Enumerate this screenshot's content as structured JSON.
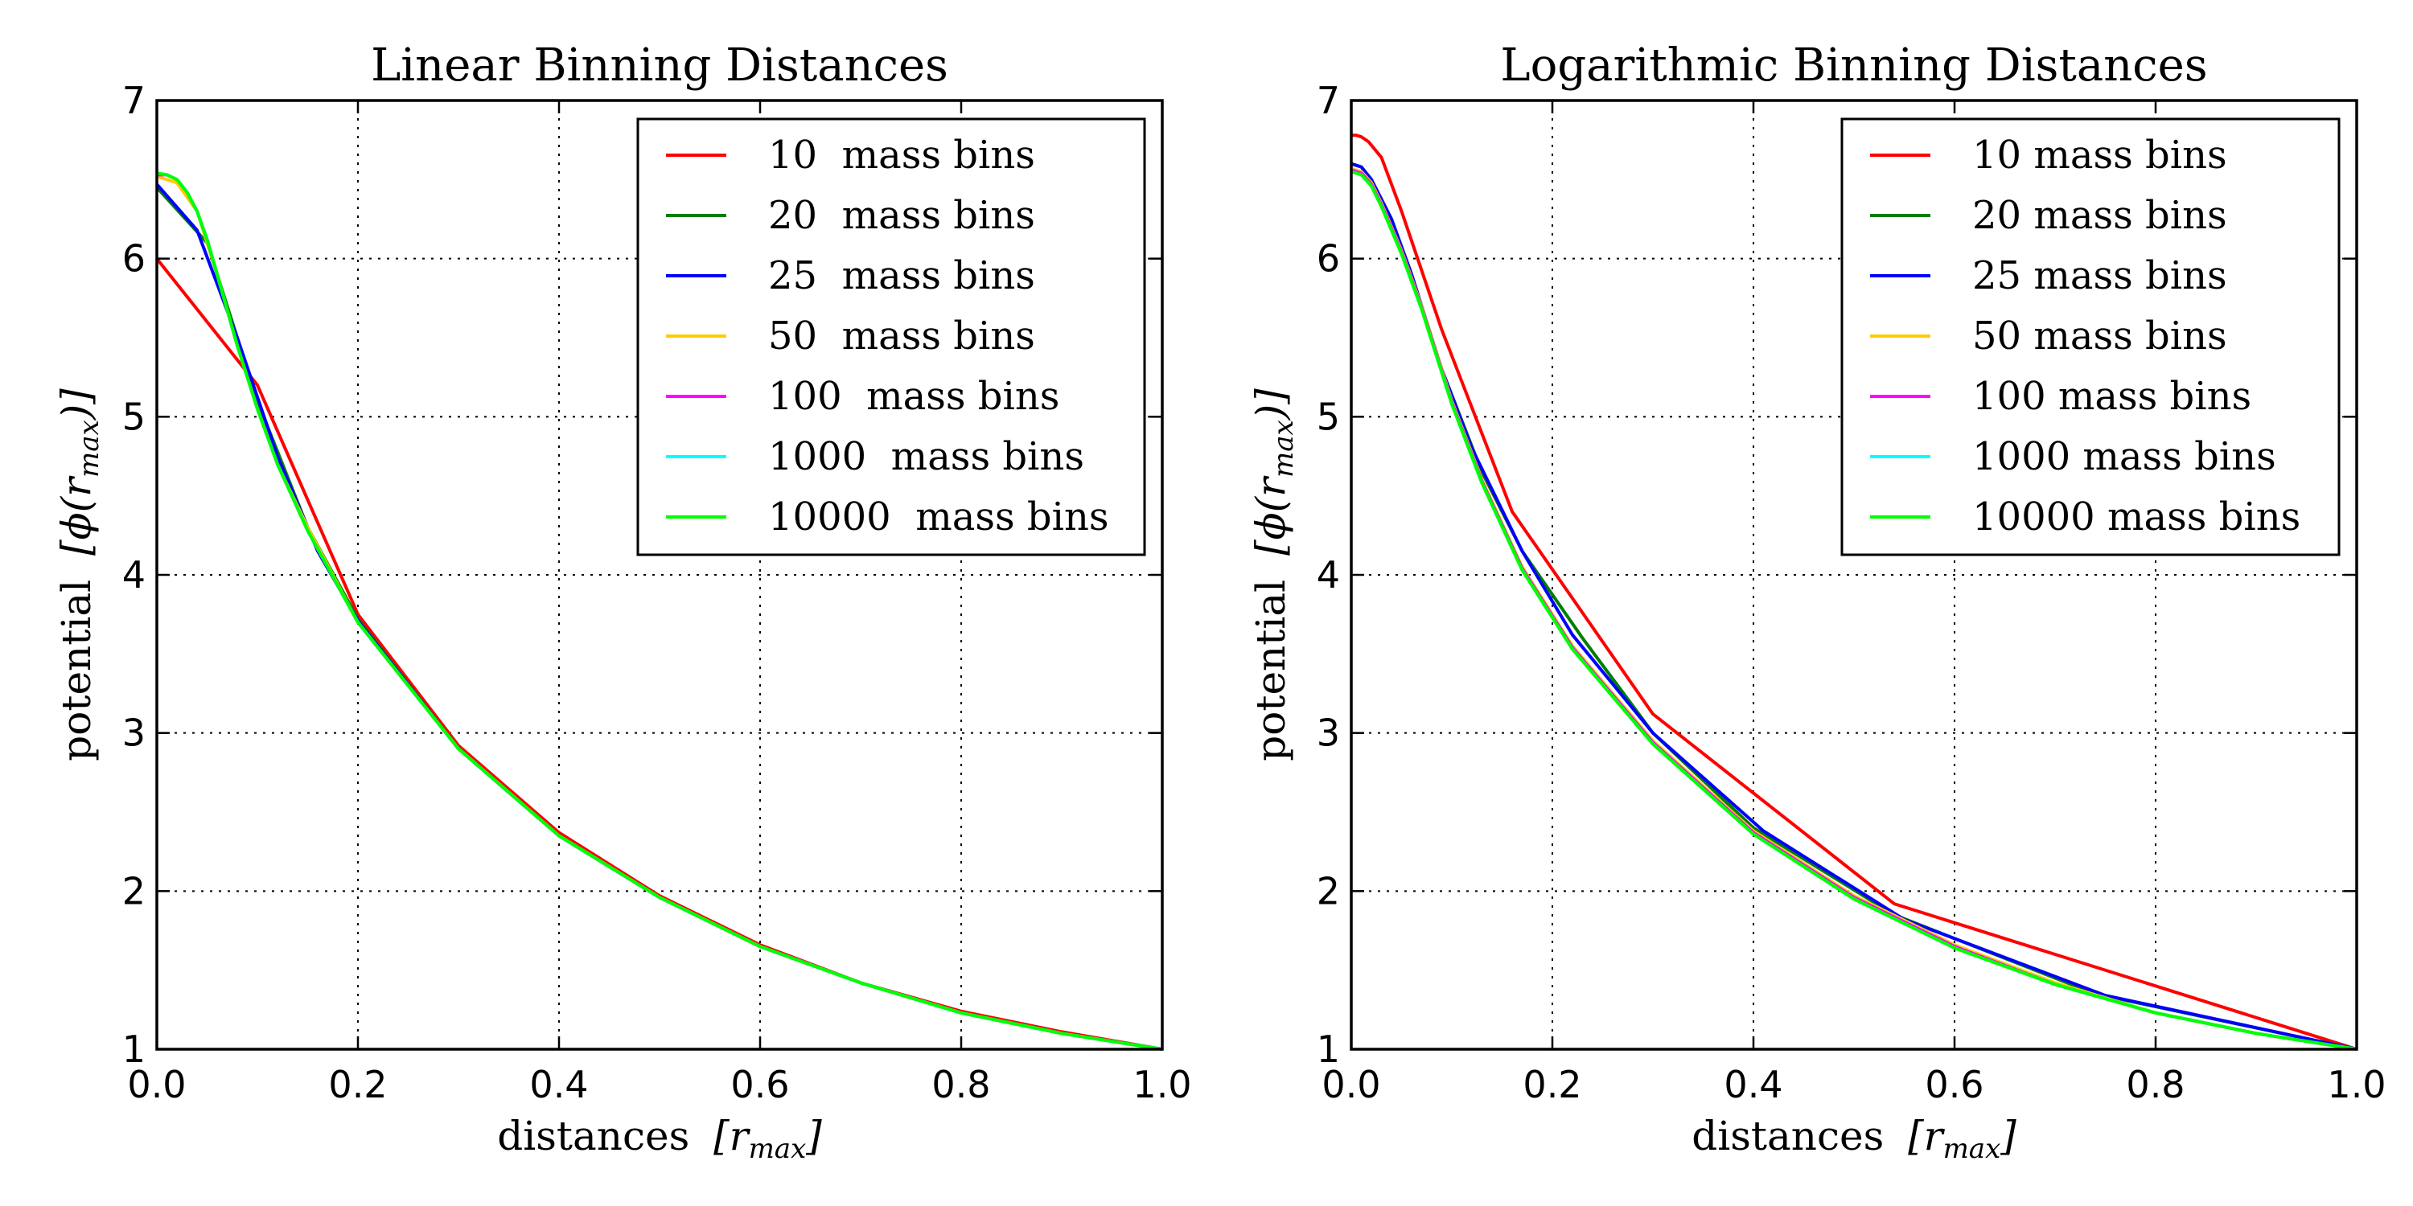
{
  "chart_data": [
    {
      "type": "line",
      "title": "Linear Binning Distances",
      "xlabel": "distances",
      "xlabel_math": "[r",
      "xlabel_sub": "max",
      "xlabel_end": "]",
      "ylabel": "potential",
      "ylabel_math": "[ϕ(r",
      "ylabel_sub": "max",
      "ylabel_end": ")]",
      "xlim": [
        0.0,
        1.0
      ],
      "ylim": [
        1,
        7
      ],
      "xticks": [
        "0.0",
        "0.2",
        "0.4",
        "0.6",
        "0.8",
        "1.0"
      ],
      "yticks": [
        "1",
        "2",
        "3",
        "4",
        "5",
        "6",
        "7"
      ],
      "grid": true,
      "legend_position": "top-right",
      "series": [
        {
          "name": "10  mass bins",
          "color": "#ff0000",
          "x": [
            0.0,
            0.1,
            0.2,
            0.3,
            0.4,
            0.5,
            0.6,
            0.7,
            0.8,
            0.9,
            1.0
          ],
          "y": [
            6.0,
            5.2,
            3.75,
            2.92,
            2.37,
            1.97,
            1.66,
            1.42,
            1.24,
            1.11,
            1.0
          ]
        },
        {
          "name": "20  mass bins",
          "color": "#007f00",
          "x": [
            0.0,
            0.05,
            0.1,
            0.15,
            0.2,
            0.3,
            0.4,
            0.5,
            0.6,
            0.7,
            0.8,
            0.9,
            1.0
          ],
          "y": [
            6.45,
            6.1,
            5.1,
            4.3,
            3.72,
            2.9,
            2.35,
            1.96,
            1.65,
            1.42,
            1.23,
            1.1,
            1.0
          ]
        },
        {
          "name": "25  mass bins",
          "color": "#0000ff",
          "x": [
            0.0,
            0.04,
            0.08,
            0.12,
            0.16,
            0.2,
            0.3,
            0.4,
            0.5,
            0.6,
            0.7,
            0.8,
            0.9,
            1.0
          ],
          "y": [
            6.47,
            6.18,
            5.5,
            4.75,
            4.15,
            3.71,
            2.9,
            2.35,
            1.96,
            1.65,
            1.42,
            1.23,
            1.1,
            1.0
          ]
        },
        {
          "name": "50  mass bins",
          "color": "#ffcc00",
          "x": [
            0.0,
            0.02,
            0.04,
            0.06,
            0.08,
            0.1,
            0.12,
            0.15,
            0.2,
            0.3,
            0.4,
            0.5,
            0.6,
            0.7,
            0.8,
            0.9,
            1.0
          ],
          "y": [
            6.52,
            6.48,
            6.3,
            5.9,
            5.45,
            5.05,
            4.7,
            4.3,
            3.7,
            2.9,
            2.35,
            1.96,
            1.65,
            1.42,
            1.23,
            1.1,
            1.0
          ]
        },
        {
          "name": "100  mass bins",
          "color": "#ff00ff",
          "x": [
            0.0,
            0.01,
            0.02,
            0.03,
            0.04,
            0.05,
            0.06,
            0.08,
            0.1,
            0.12,
            0.15,
            0.2,
            0.3,
            0.4,
            0.5,
            0.6,
            0.7,
            0.8,
            0.9,
            1.0
          ],
          "y": [
            6.53,
            6.53,
            6.5,
            6.42,
            6.3,
            6.12,
            5.9,
            5.45,
            5.05,
            4.7,
            4.28,
            3.7,
            2.9,
            2.35,
            1.96,
            1.65,
            1.42,
            1.23,
            1.1,
            1.0
          ]
        },
        {
          "name": "1000  mass bins",
          "color": "#00ffff",
          "x": [
            0.0,
            0.01,
            0.02,
            0.03,
            0.04,
            0.05,
            0.06,
            0.08,
            0.1,
            0.12,
            0.15,
            0.2,
            0.3,
            0.4,
            0.5,
            0.6,
            0.7,
            0.8,
            0.9,
            1.0
          ],
          "y": [
            6.54,
            6.53,
            6.5,
            6.42,
            6.3,
            6.12,
            5.9,
            5.45,
            5.05,
            4.7,
            4.28,
            3.7,
            2.9,
            2.35,
            1.96,
            1.65,
            1.42,
            1.23,
            1.1,
            1.0
          ]
        },
        {
          "name": "10000  mass bins",
          "color": "#00ff00",
          "x": [
            0.0,
            0.01,
            0.02,
            0.03,
            0.04,
            0.05,
            0.06,
            0.08,
            0.1,
            0.12,
            0.15,
            0.2,
            0.3,
            0.4,
            0.5,
            0.6,
            0.7,
            0.8,
            0.9,
            1.0
          ],
          "y": [
            6.54,
            6.53,
            6.5,
            6.42,
            6.3,
            6.12,
            5.9,
            5.45,
            5.05,
            4.7,
            4.28,
            3.7,
            2.9,
            2.35,
            1.96,
            1.65,
            1.42,
            1.23,
            1.1,
            1.0
          ]
        }
      ]
    },
    {
      "type": "line",
      "title": "Logarithmic Binning Distances",
      "xlabel": "distances",
      "xlabel_math": "[r",
      "xlabel_sub": "max",
      "xlabel_end": "]",
      "ylabel": "potential",
      "ylabel_math": "[ϕ(r",
      "ylabel_sub": "max",
      "ylabel_end": ")]",
      "xlim": [
        0.0,
        1.0
      ],
      "ylim": [
        1,
        7
      ],
      "xticks": [
        "0.0",
        "0.2",
        "0.4",
        "0.6",
        "0.8",
        "1.0"
      ],
      "yticks": [
        "1",
        "2",
        "3",
        "4",
        "5",
        "6",
        "7"
      ],
      "grid": true,
      "legend_position": "top-right",
      "series": [
        {
          "name": "10 mass bins",
          "color": "#ff0000",
          "x": [
            0.0,
            0.005,
            0.01,
            0.017,
            0.03,
            0.05,
            0.09,
            0.16,
            0.3,
            0.54,
            1.0
          ],
          "y": [
            6.78,
            6.78,
            6.77,
            6.74,
            6.64,
            6.3,
            5.55,
            4.4,
            3.12,
            1.92,
            1.0
          ]
        },
        {
          "name": "20 mass bins",
          "color": "#007f00",
          "x": [
            0.0,
            0.01,
            0.02,
            0.04,
            0.06,
            0.09,
            0.13,
            0.17,
            0.23,
            0.3,
            0.4,
            0.54,
            0.74,
            1.0
          ],
          "y": [
            6.6,
            6.58,
            6.5,
            6.25,
            5.9,
            5.3,
            4.65,
            4.15,
            3.6,
            3.0,
            2.4,
            1.85,
            1.35,
            1.0
          ]
        },
        {
          "name": "25 mass bins",
          "color": "#0000ff",
          "x": [
            0.0,
            0.01,
            0.02,
            0.04,
            0.06,
            0.09,
            0.12,
            0.17,
            0.22,
            0.3,
            0.41,
            0.55,
            0.75,
            1.0
          ],
          "y": [
            6.6,
            6.58,
            6.5,
            6.25,
            5.9,
            5.3,
            4.8,
            4.15,
            3.62,
            3.0,
            2.38,
            1.82,
            1.34,
            1.0
          ]
        },
        {
          "name": "50 mass bins",
          "color": "#ffcc00",
          "x": [
            0.0,
            0.01,
            0.02,
            0.03,
            0.05,
            0.07,
            0.1,
            0.13,
            0.17,
            0.22,
            0.3,
            0.4,
            0.5,
            0.6,
            0.7,
            0.8,
            0.9,
            1.0
          ],
          "y": [
            6.57,
            6.55,
            6.48,
            6.35,
            6.05,
            5.7,
            5.1,
            4.6,
            4.05,
            3.55,
            2.95,
            2.38,
            1.97,
            1.66,
            1.42,
            1.23,
            1.1,
            1.0
          ]
        },
        {
          "name": "100 mass bins",
          "color": "#ff00ff",
          "x": [
            0.0,
            0.01,
            0.02,
            0.03,
            0.05,
            0.07,
            0.1,
            0.13,
            0.17,
            0.22,
            0.3,
            0.4,
            0.5,
            0.6,
            0.7,
            0.8,
            0.9,
            1.0
          ],
          "y": [
            6.56,
            6.54,
            6.47,
            6.34,
            6.04,
            5.69,
            5.09,
            4.59,
            4.04,
            3.54,
            2.94,
            2.37,
            1.96,
            1.65,
            1.41,
            1.23,
            1.1,
            1.0
          ]
        },
        {
          "name": "1000 mass bins",
          "color": "#00ffff",
          "x": [
            0.0,
            0.01,
            0.02,
            0.03,
            0.05,
            0.07,
            0.1,
            0.13,
            0.17,
            0.22,
            0.3,
            0.4,
            0.5,
            0.6,
            0.7,
            0.8,
            0.9,
            1.0
          ],
          "y": [
            6.55,
            6.53,
            6.46,
            6.33,
            6.03,
            5.68,
            5.08,
            4.58,
            4.03,
            3.53,
            2.93,
            2.36,
            1.95,
            1.64,
            1.41,
            1.23,
            1.1,
            1.0
          ]
        },
        {
          "name": "10000 mass bins",
          "color": "#00ff00",
          "x": [
            0.0,
            0.01,
            0.02,
            0.03,
            0.05,
            0.07,
            0.1,
            0.13,
            0.17,
            0.22,
            0.3,
            0.4,
            0.5,
            0.6,
            0.7,
            0.8,
            0.9,
            1.0
          ],
          "y": [
            6.55,
            6.53,
            6.46,
            6.33,
            6.03,
            5.68,
            5.08,
            4.58,
            4.03,
            3.53,
            2.93,
            2.36,
            1.95,
            1.64,
            1.41,
            1.23,
            1.1,
            1.0
          ]
        }
      ]
    }
  ]
}
